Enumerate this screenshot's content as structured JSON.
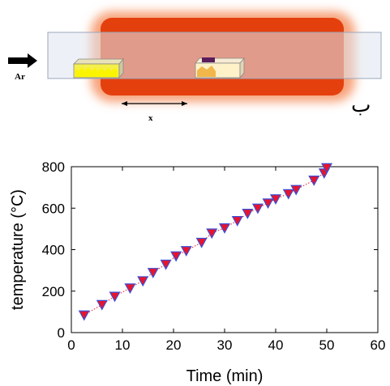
{
  "figure": {
    "gas_label": "Ar",
    "distance_label": "x",
    "panel_label": "ب",
    "colors": {
      "furnace": "#e4400e",
      "furnace_glow": "#f7a37a",
      "tube": "#dfe6f1",
      "boat_left": "#f4ef4a",
      "boat_right": "#fff2c8",
      "sample": "#5a1c5a"
    }
  },
  "chart_data": {
    "type": "scatter",
    "xlabel": "Time (min)",
    "ylabel": "temperature (°C)",
    "xlim": [
      0,
      60
    ],
    "ylim": [
      0,
      800
    ],
    "xticks": [
      0,
      10,
      20,
      30,
      40,
      50,
      60
    ],
    "yticks": [
      0,
      200,
      400,
      600,
      800
    ],
    "grid": false,
    "marker": "down-triangle",
    "colors": {
      "marker_fill": "#e8142d",
      "marker_edge": "#3a4fd8",
      "trend_line": "#e8142d"
    },
    "series": [
      {
        "x": [
          2.5,
          6,
          8.5,
          11.5,
          14,
          16,
          18.5,
          20.5,
          22.5,
          25.5,
          27.5,
          30,
          32.5,
          34.5,
          36.5,
          38.5,
          40,
          42.5,
          44,
          47.5,
          49.5,
          50
        ],
        "values": [
          85,
          135,
          175,
          215,
          250,
          290,
          330,
          370,
          395,
          435,
          480,
          505,
          540,
          575,
          600,
          625,
          645,
          670,
          690,
          735,
          770,
          795
        ]
      }
    ]
  }
}
